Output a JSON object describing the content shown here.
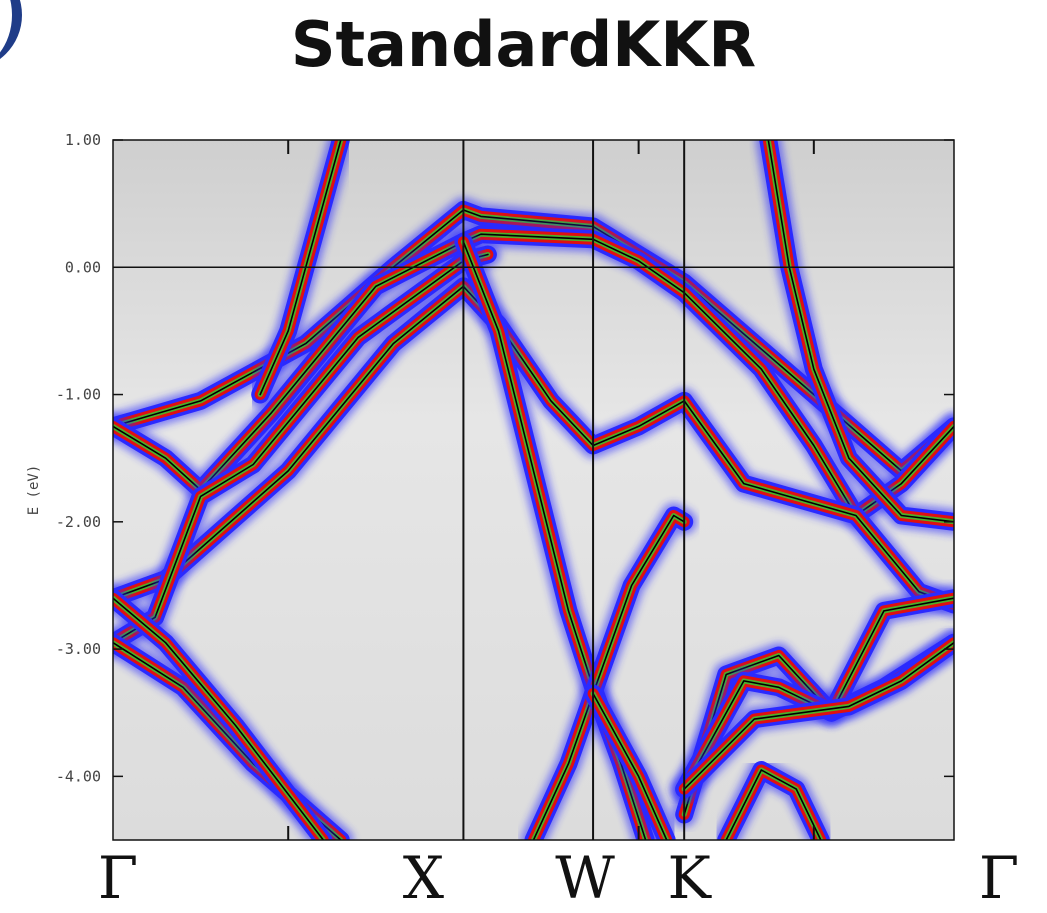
{
  "title": "StandardKKR",
  "chart_data": {
    "type": "line",
    "title": "StandardKKR",
    "ylabel": "E (eV)",
    "xlabel": "",
    "ylim": [
      -4.5,
      1.0
    ],
    "yticks": [
      {
        "value": 1.0,
        "label": "1.00"
      },
      {
        "value": 0.0,
        "label": "0.00"
      },
      {
        "value": -1.0,
        "label": "-1.00"
      },
      {
        "value": -2.0,
        "label": "-2.00"
      },
      {
        "value": -3.0,
        "label": "-3.00"
      },
      {
        "value": -4.0,
        "label": "-4.00"
      }
    ],
    "kpoints": [
      {
        "label": "Γ",
        "k": 0.0
      },
      {
        "label": "X",
        "k": 1.0
      },
      {
        "label": "W",
        "k": 1.37
      },
      {
        "label": "K",
        "k": 1.63
      },
      {
        "label": "Γ",
        "k": 2.4
      }
    ],
    "fermi_level": 0.0,
    "grid": false,
    "colors": {
      "broadening_outer": "#2a2aff",
      "broadening_inner": "#e01010",
      "band_core": "#4caf2a",
      "band_line": "#000000",
      "background": "#d8d8d8"
    },
    "series": [
      {
        "points": [
          [
            0.0,
            -1.25
          ],
          [
            0.25,
            -1.05
          ],
          [
            0.55,
            -0.6
          ],
          [
            0.8,
            0.0
          ],
          [
            1.0,
            0.45
          ],
          [
            1.05,
            0.4
          ],
          [
            1.37,
            0.32
          ],
          [
            1.63,
            -0.12
          ],
          [
            2.0,
            -1.0
          ],
          [
            2.25,
            -1.6
          ],
          [
            2.4,
            -1.25
          ]
        ]
      },
      {
        "points": [
          [
            0.0,
            -1.25
          ],
          [
            0.15,
            -1.5
          ],
          [
            0.25,
            -1.75
          ],
          [
            0.45,
            -1.15
          ],
          [
            0.75,
            -0.15
          ],
          [
            1.0,
            0.2
          ],
          [
            1.05,
            0.26
          ],
          [
            1.37,
            0.22
          ],
          [
            1.5,
            0.05
          ],
          [
            1.63,
            -0.2
          ],
          [
            1.85,
            -0.8
          ],
          [
            2.0,
            -1.4
          ],
          [
            2.12,
            -1.95
          ],
          [
            2.25,
            -1.7
          ],
          [
            2.4,
            -1.25
          ]
        ]
      },
      {
        "points": [
          [
            0.0,
            -2.6
          ],
          [
            0.15,
            -2.45
          ],
          [
            0.5,
            -1.6
          ],
          [
            0.8,
            -0.6
          ],
          [
            1.0,
            -0.15
          ],
          [
            1.1,
            -0.45
          ],
          [
            1.25,
            -1.05
          ],
          [
            1.37,
            -1.4
          ],
          [
            1.5,
            -1.25
          ],
          [
            1.63,
            -1.05
          ],
          [
            1.8,
            -1.7
          ],
          [
            2.12,
            -1.95
          ],
          [
            2.3,
            -2.55
          ],
          [
            2.4,
            -2.65
          ]
        ]
      },
      {
        "points": [
          [
            0.0,
            -2.95
          ],
          [
            0.12,
            -2.75
          ],
          [
            0.25,
            -1.8
          ],
          [
            0.4,
            -1.55
          ],
          [
            0.7,
            -0.55
          ],
          [
            1.0,
            0.05
          ],
          [
            1.07,
            0.1
          ]
        ]
      },
      {
        "points": [
          [
            0.0,
            -2.95
          ],
          [
            0.2,
            -3.3
          ],
          [
            0.4,
            -3.9
          ],
          [
            0.65,
            -4.5
          ]
        ]
      },
      {
        "points": [
          [
            0.0,
            -2.6
          ],
          [
            0.15,
            -2.95
          ],
          [
            0.35,
            -3.6
          ],
          [
            0.6,
            -4.5
          ]
        ]
      },
      {
        "points": [
          [
            0.65,
            1.0
          ],
          [
            0.6,
            0.5
          ],
          [
            0.55,
            0.0
          ],
          [
            0.5,
            -0.5
          ],
          [
            0.42,
            -1.0
          ]
        ]
      },
      {
        "points": [
          [
            1.0,
            0.2
          ],
          [
            1.1,
            -0.5
          ],
          [
            1.2,
            -1.6
          ],
          [
            1.3,
            -2.7
          ],
          [
            1.37,
            -3.3
          ],
          [
            1.45,
            -3.9
          ],
          [
            1.52,
            -4.5
          ]
        ]
      },
      {
        "points": [
          [
            1.2,
            -4.5
          ],
          [
            1.3,
            -3.9
          ],
          [
            1.37,
            -3.35
          ],
          [
            1.48,
            -2.5
          ],
          [
            1.6,
            -1.95
          ],
          [
            1.63,
            -2.0
          ]
        ]
      },
      {
        "points": [
          [
            1.63,
            -4.3
          ],
          [
            1.75,
            -3.2
          ],
          [
            1.9,
            -3.05
          ],
          [
            2.05,
            -3.5
          ],
          [
            2.2,
            -3.3
          ],
          [
            2.4,
            -2.95
          ]
        ]
      },
      {
        "points": [
          [
            1.63,
            -4.1
          ],
          [
            1.8,
            -3.25
          ],
          [
            1.9,
            -3.3
          ],
          [
            2.05,
            -3.5
          ],
          [
            2.2,
            -2.7
          ],
          [
            2.4,
            -2.6
          ]
        ]
      },
      {
        "points": [
          [
            1.63,
            -4.1
          ],
          [
            1.83,
            -3.55
          ],
          [
            2.1,
            -3.45
          ],
          [
            2.25,
            -3.25
          ],
          [
            2.4,
            -2.95
          ]
        ]
      },
      {
        "points": [
          [
            1.37,
            -3.35
          ],
          [
            1.43,
            -3.65
          ],
          [
            1.5,
            -4.0
          ],
          [
            1.58,
            -4.5
          ]
        ]
      },
      {
        "points": [
          [
            1.75,
            -4.5
          ],
          [
            1.85,
            -3.95
          ],
          [
            1.95,
            -4.1
          ],
          [
            2.02,
            -4.5
          ]
        ]
      },
      {
        "points": [
          [
            1.87,
            1.0
          ],
          [
            1.93,
            0.0
          ],
          [
            2.0,
            -0.8
          ],
          [
            2.1,
            -1.5
          ],
          [
            2.25,
            -1.95
          ],
          [
            2.4,
            -2.0
          ]
        ]
      }
    ]
  }
}
